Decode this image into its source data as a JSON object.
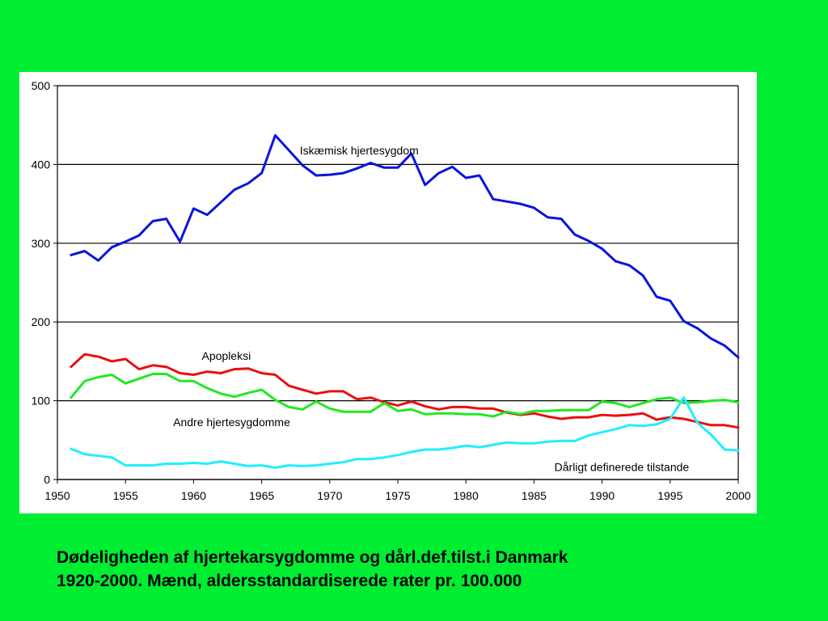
{
  "caption": {
    "line1": "Dødeligheden af hjertekarsygdomme og dårl.def.tilst.i Danmark",
    "line2": "1920-2000. Mænd, aldersstandardiserede rater pr. 100.000"
  },
  "colors": {
    "background": "#00ee32",
    "panel": "#ffffff"
  },
  "chart_data": {
    "type": "line",
    "title": "",
    "xlabel": "",
    "ylabel": "",
    "xlim": [
      1950,
      2000
    ],
    "ylim": [
      0,
      500
    ],
    "x_ticks": [
      1950,
      1955,
      1960,
      1965,
      1970,
      1975,
      1980,
      1985,
      1990,
      1995,
      2000
    ],
    "y_ticks": [
      0,
      100,
      200,
      300,
      400,
      500
    ],
    "grid": "horizontal",
    "legend": "none (series labelled inline)",
    "x": [
      1951,
      1952,
      1953,
      1954,
      1955,
      1956,
      1957,
      1958,
      1959,
      1960,
      1961,
      1962,
      1963,
      1964,
      1965,
      1966,
      1967,
      1968,
      1969,
      1970,
      1971,
      1972,
      1973,
      1974,
      1975,
      1976,
      1977,
      1978,
      1979,
      1980,
      1981,
      1982,
      1983,
      1984,
      1985,
      1986,
      1987,
      1988,
      1989,
      1990,
      1991,
      1992,
      1993,
      1994,
      1995,
      1996,
      1997,
      1998,
      1999,
      2000
    ],
    "series": [
      {
        "name": "Iskæmisk hjertesygdom",
        "color": "#0a14dc",
        "values": [
          285,
          290,
          278,
          295,
          302,
          310,
          328,
          331,
          302,
          344,
          336,
          352,
          368,
          376,
          389,
          437,
          418,
          399,
          386,
          387,
          389,
          395,
          402,
          396,
          396,
          414,
          374,
          389,
          397,
          383,
          386,
          356,
          353,
          350,
          345,
          333,
          331,
          311,
          303,
          293,
          277,
          272,
          259,
          232,
          227,
          201,
          192,
          179,
          170,
          155
        ]
      },
      {
        "name": "Apopleksi",
        "color": "#e81010",
        "values": [
          143,
          159,
          156,
          150,
          153,
          140,
          145,
          143,
          135,
          133,
          137,
          135,
          140,
          141,
          135,
          133,
          119,
          114,
          109,
          112,
          112,
          102,
          104,
          98,
          94,
          99,
          93,
          89,
          92,
          92,
          90,
          90,
          85,
          82,
          84,
          80,
          77,
          79,
          79,
          82,
          81,
          82,
          84,
          76,
          79,
          77,
          73,
          69,
          69,
          66
        ]
      },
      {
        "name": "Andre hjertesygdomme",
        "color": "#22e822",
        "values": [
          104,
          125,
          130,
          133,
          122,
          128,
          134,
          134,
          125,
          125,
          116,
          109,
          105,
          110,
          114,
          101,
          92,
          89,
          99,
          90,
          86,
          86,
          86,
          97,
          87,
          89,
          83,
          84,
          84,
          83,
          83,
          80,
          86,
          83,
          87,
          87,
          88,
          88,
          88,
          99,
          97,
          92,
          97,
          102,
          104,
          97,
          98,
          100,
          101,
          98
        ]
      },
      {
        "name": "Dårligt definerede tilstande",
        "color": "#22eefe",
        "values": [
          39,
          32,
          30,
          28,
          18,
          18,
          18,
          20,
          20,
          21,
          20,
          23,
          20,
          17,
          18,
          15,
          18,
          17,
          18,
          20,
          22,
          26,
          26,
          28,
          31,
          35,
          38,
          38,
          40,
          43,
          41,
          44,
          47,
          46,
          46,
          48,
          49,
          49,
          56,
          60,
          64,
          69,
          68,
          70,
          77,
          104,
          72,
          57,
          38,
          37
        ]
      }
    ],
    "annotations": [
      {
        "text": "Iskæmisk hjertesygdom",
        "x": 1967.8,
        "y": 418
      },
      {
        "text": "Apopleksi",
        "x": 1960.6,
        "y": 157
      },
      {
        "text": "Andre hjertesygdomme",
        "x": 1958.5,
        "y": 73
      },
      {
        "text": "Dårligt definerede tilstande",
        "x": 1986.5,
        "y": 16
      }
    ]
  }
}
